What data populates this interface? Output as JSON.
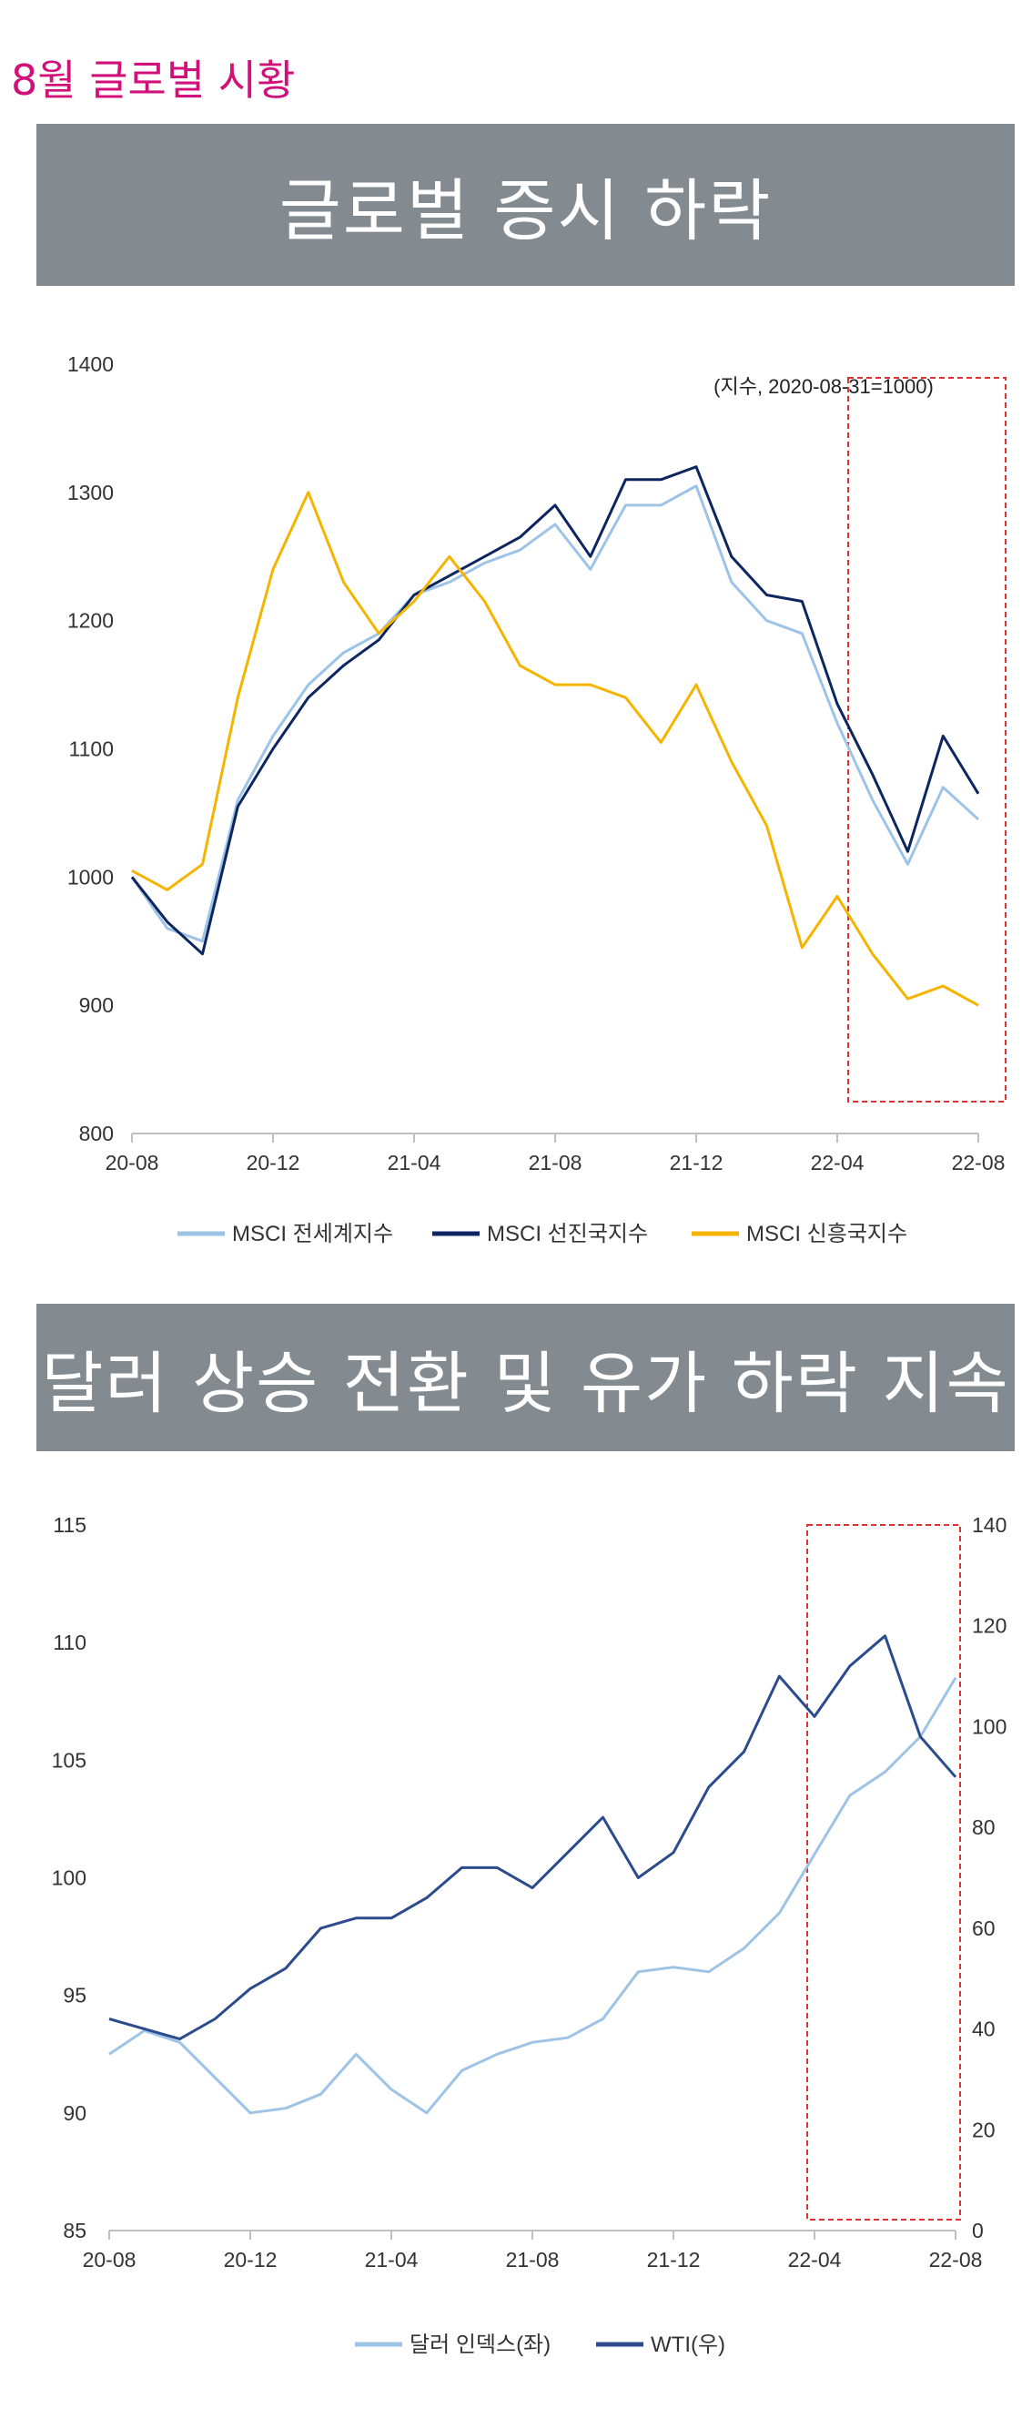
{
  "page": {
    "title": "8월 글로벌 시황"
  },
  "chart_data": [
    {
      "type": "line",
      "title": "글로벌 증시 하락",
      "note": "(지수, 2020-08-31=1000)",
      "ylim": [
        800,
        1400
      ],
      "yticks": [
        800,
        900,
        1000,
        1100,
        1200,
        1300,
        1400
      ],
      "xticks": [
        "20-08",
        "20-12",
        "21-04",
        "21-08",
        "21-12",
        "22-04",
        "22-08"
      ],
      "legend_position": "bottom",
      "highlight_range": [
        "22-04",
        "22-08"
      ],
      "colors": {
        "s0": "#9dc3e6",
        "s1": "#0d2660",
        "s2": "#f4b400",
        "highlight": "#e03030"
      },
      "x": [
        "20-08",
        "20-09",
        "20-10",
        "20-11",
        "20-12",
        "21-01",
        "21-02",
        "21-03",
        "21-04",
        "21-05",
        "21-06",
        "21-07",
        "21-08",
        "21-09",
        "21-10",
        "21-11",
        "21-12",
        "22-01",
        "22-02",
        "22-03",
        "22-04",
        "22-05",
        "22-06",
        "22-07",
        "22-08"
      ],
      "series": [
        {
          "name": "MSCI 전세계지수",
          "values": [
            1000,
            960,
            950,
            1060,
            1110,
            1150,
            1175,
            1190,
            1220,
            1230,
            1245,
            1255,
            1275,
            1240,
            1290,
            1290,
            1305,
            1230,
            1200,
            1190,
            1120,
            1060,
            1010,
            1070,
            1045
          ]
        },
        {
          "name": "MSCI 선진국지수",
          "values": [
            1000,
            965,
            940,
            1055,
            1100,
            1140,
            1165,
            1185,
            1220,
            1235,
            1250,
            1265,
            1290,
            1250,
            1310,
            1310,
            1320,
            1250,
            1220,
            1215,
            1135,
            1080,
            1020,
            1110,
            1065
          ]
        },
        {
          "name": "MSCI 신흥국지수",
          "values": [
            1005,
            990,
            1010,
            1140,
            1240,
            1300,
            1230,
            1190,
            1215,
            1250,
            1215,
            1165,
            1150,
            1150,
            1140,
            1105,
            1150,
            1090,
            1040,
            945,
            985,
            940,
            905,
            915,
            900
          ]
        }
      ]
    },
    {
      "type": "line",
      "title": "달러 상승 전환 및 유가 하락 지속",
      "ylim": [
        85,
        115
      ],
      "yticks": [
        85,
        90,
        95,
        100,
        105,
        110,
        115
      ],
      "y2lim": [
        0,
        140
      ],
      "y2ticks": [
        0,
        20,
        40,
        60,
        80,
        100,
        120,
        140
      ],
      "xticks": [
        "20-08",
        "20-12",
        "21-04",
        "21-08",
        "21-12",
        "22-04",
        "22-08"
      ],
      "legend_position": "bottom",
      "highlight_range": [
        "22-04",
        "22-08"
      ],
      "colors": {
        "s0": "#9dc3e6",
        "s1": "#2b4b8c",
        "highlight": "#e03030"
      },
      "x": [
        "20-08",
        "20-09",
        "20-10",
        "20-11",
        "20-12",
        "21-01",
        "21-02",
        "21-03",
        "21-04",
        "21-05",
        "21-06",
        "21-07",
        "21-08",
        "21-09",
        "21-10",
        "21-11",
        "21-12",
        "22-01",
        "22-02",
        "22-03",
        "22-04",
        "22-05",
        "22-06",
        "22-07",
        "22-08"
      ],
      "series": [
        {
          "name": "달러 인덱스(좌)",
          "axis": "left",
          "values": [
            92.5,
            93.5,
            93.0,
            91.5,
            90.0,
            90.2,
            90.8,
            92.5,
            91.0,
            90.0,
            91.8,
            92.5,
            93.0,
            93.2,
            94.0,
            96.0,
            96.2,
            96.0,
            97.0,
            98.5,
            101.0,
            103.5,
            104.5,
            106.0,
            108.5
          ]
        },
        {
          "name": "WTI(우)",
          "axis": "right",
          "values": [
            42,
            40,
            38,
            42,
            48,
            52,
            60,
            62,
            62,
            66,
            72,
            72,
            68,
            75,
            82,
            70,
            75,
            88,
            95,
            110,
            102,
            112,
            118,
            98,
            90
          ]
        }
      ]
    }
  ]
}
